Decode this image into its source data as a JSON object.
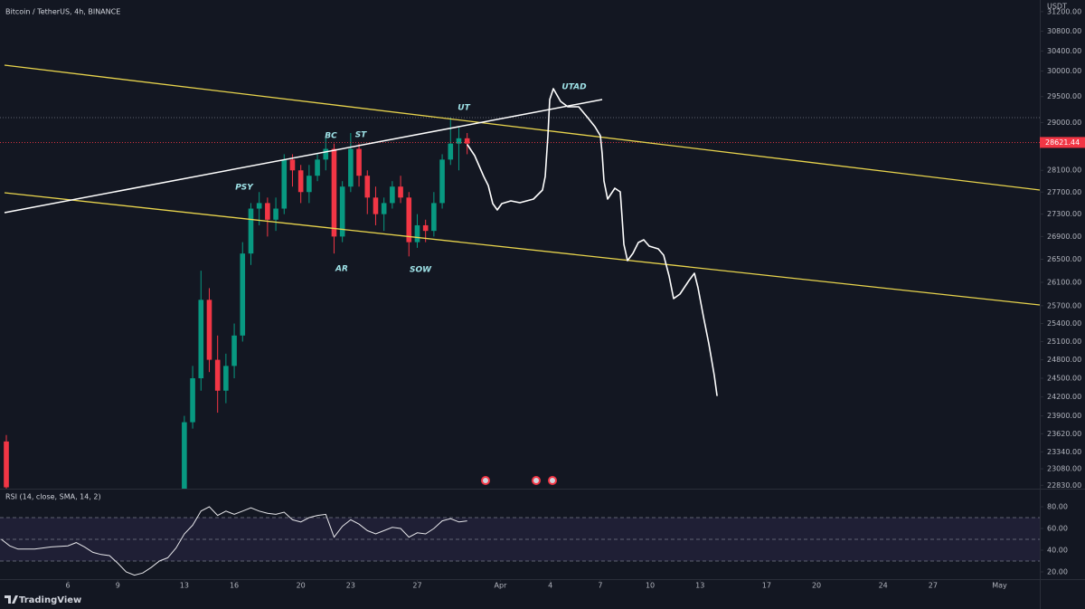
{
  "chart_data": [
    {
      "type": "candlestick",
      "title": "Bitcoin / TetherUS, 4h, BINANCE",
      "unit_label": "USDT",
      "log_scale": true,
      "up_color": "#089981",
      "down_color": "#f23645",
      "xlim": [
        1.92,
        64.42
      ],
      "xticks": [
        6,
        9,
        13,
        16,
        20,
        23,
        27,
        {
          "value": 32,
          "label": "Apr"
        },
        {
          "value": 35,
          "label": "4"
        },
        {
          "value": 38,
          "label": "7"
        },
        {
          "value": 41,
          "label": "10"
        },
        {
          "value": 44,
          "label": "13"
        },
        {
          "value": 48,
          "label": "17"
        },
        {
          "value": 51,
          "label": "20"
        },
        {
          "value": 55,
          "label": "24"
        },
        {
          "value": 58,
          "label": "27"
        },
        {
          "value": 62,
          "label": "May"
        }
      ],
      "ylim": [
        22780,
        31440
      ],
      "yticks": [
        {
          "value": 31200,
          "label": "31200.00"
        },
        {
          "value": 30800,
          "label": "30800.00"
        },
        {
          "value": 30400,
          "label": "30400.00"
        },
        {
          "value": 30000,
          "label": "30000.00"
        },
        {
          "value": 29500,
          "label": "29500.00"
        },
        {
          "value": 29000,
          "label": "29000.00"
        },
        {
          "value": 28100,
          "label": "28100.00"
        },
        {
          "value": 27700,
          "label": "27700.00"
        },
        {
          "value": 27300,
          "label": "27300.00"
        },
        {
          "value": 26900,
          "label": "26900.00"
        },
        {
          "value": 26500,
          "label": "26500.00"
        },
        {
          "value": 26100,
          "label": "26100.00"
        },
        {
          "value": 25700,
          "label": "25700.00"
        },
        {
          "value": 25400,
          "label": "25400.00"
        },
        {
          "value": 25100,
          "label": "25100.00"
        },
        {
          "value": 24800,
          "label": "24800.00"
        },
        {
          "value": 24500,
          "label": "24500.00"
        },
        {
          "value": 24200,
          "label": "24200.00"
        },
        {
          "value": 23900,
          "label": "23900.00"
        },
        {
          "value": 23620,
          "label": "23620.00"
        },
        {
          "value": 23340,
          "label": "23340.00"
        },
        {
          "value": 23080,
          "label": "23080.00"
        },
        {
          "value": 22830,
          "label": "22830.00"
        }
      ],
      "current_price": {
        "value": 28621.44,
        "label": "28621.44"
      },
      "x": [
        2.3,
        13.0,
        13.5,
        14.0,
        14.5,
        15.0,
        15.5,
        16.0,
        16.5,
        17.0,
        17.5,
        18.0,
        18.5,
        19.0,
        19.5,
        20.0,
        20.5,
        21.0,
        21.5,
        22.0,
        22.5,
        23.0,
        23.5,
        24.0,
        24.5,
        25.0,
        25.5,
        26.0,
        26.5,
        27.0,
        27.5,
        28.0,
        28.5,
        29.0,
        29.5,
        30.0
      ],
      "open": [
        23500,
        22600,
        23800,
        24500,
        25800,
        24800,
        24300,
        24700,
        25200,
        26600,
        27400,
        27500,
        27200,
        27400,
        28300,
        28100,
        27700,
        28000,
        28300,
        28500,
        26900,
        27800,
        28500,
        28000,
        27600,
        27300,
        27500,
        27800,
        27600,
        26800,
        27100,
        27000,
        27500,
        28300,
        28600,
        28700
      ],
      "high": [
        23600,
        23900,
        24700,
        26300,
        26000,
        25200,
        24900,
        25400,
        26800,
        27500,
        27700,
        27600,
        27600,
        28400,
        28400,
        28200,
        28200,
        28400,
        28700,
        28600,
        27900,
        28800,
        28600,
        28100,
        27800,
        27600,
        27900,
        28000,
        27700,
        27300,
        27200,
        27700,
        28400,
        29100,
        28900,
        28800
      ],
      "low": [
        22700,
        22500,
        23700,
        24300,
        24600,
        23950,
        24100,
        24500,
        25100,
        26400,
        27100,
        26900,
        27000,
        27300,
        27800,
        27500,
        27500,
        27900,
        28100,
        26600,
        26800,
        27700,
        27800,
        27300,
        27100,
        27000,
        27400,
        27500,
        26550,
        26700,
        26800,
        26900,
        27400,
        28200,
        28100,
        28400
      ],
      "close": [
        22800,
        23800,
        24500,
        25800,
        24800,
        24300,
        24700,
        25200,
        26600,
        27400,
        27500,
        27200,
        27400,
        28300,
        28100,
        27700,
        28000,
        28300,
        28500,
        26900,
        27800,
        28500,
        28000,
        27600,
        27300,
        27500,
        27800,
        27600,
        26800,
        27100,
        27000,
        27500,
        28300,
        28600,
        28700,
        28600
      ],
      "annotations": [
        "PSY",
        "BC",
        "ST",
        "AR",
        "SOW",
        "UT",
        "UTAD"
      ]
    },
    {
      "type": "line",
      "title": "RSI (14, close, SMA, 14, 2)",
      "color": "#e6e6ea",
      "xlim": [
        1.92,
        64.42
      ],
      "ylim": [
        13.3,
        96.7
      ],
      "yticks": [
        {
          "value": 80,
          "label": "80.00"
        },
        {
          "value": 60,
          "label": "60.00"
        },
        {
          "value": 40,
          "label": "40.00"
        },
        {
          "value": 20,
          "label": "20.00"
        }
      ],
      "bands": [
        70,
        50,
        30
      ],
      "x": [
        2.0,
        2.5,
        3,
        4,
        5,
        6,
        6.5,
        7,
        7.5,
        8,
        8.5,
        9,
        9.5,
        10,
        10.5,
        11,
        11.5,
        12,
        12.5,
        13,
        13.5,
        14,
        14.5,
        15,
        15.5,
        16,
        16.5,
        17,
        17.5,
        18,
        18.5,
        19,
        19.5,
        20,
        20.5,
        21,
        21.5,
        22,
        22.5,
        23,
        23.5,
        24,
        24.5,
        25,
        25.5,
        26,
        26.5,
        27,
        27.5,
        28,
        28.5,
        29,
        29.5,
        30
      ],
      "values": [
        50,
        44,
        41,
        41,
        43,
        44,
        47,
        43,
        38,
        36,
        35,
        28,
        20,
        17,
        19,
        24,
        30,
        33,
        42,
        55,
        63,
        76,
        80,
        72,
        76,
        73,
        76,
        79,
        76,
        74,
        73,
        75,
        68,
        66,
        70,
        72,
        73,
        52,
        62,
        68,
        64,
        58,
        55,
        58,
        61,
        60,
        52,
        56,
        55,
        60,
        67,
        69,
        66,
        67
      ]
    },
    {
      "brand": "TradingView"
    }
  ]
}
